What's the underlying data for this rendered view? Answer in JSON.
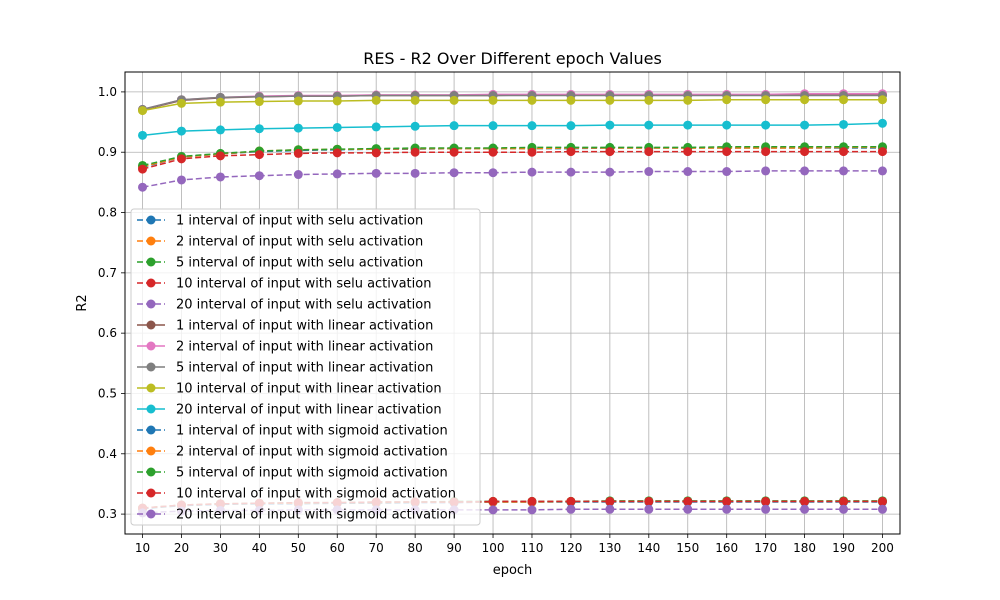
{
  "chart_data": {
    "type": "line",
    "title": "RES - R2 Over Different epoch Values",
    "xlabel": "epoch",
    "ylabel": "R2",
    "x": [
      10,
      20,
      30,
      40,
      50,
      60,
      70,
      80,
      90,
      100,
      110,
      120,
      130,
      140,
      150,
      160,
      170,
      180,
      190,
      200
    ],
    "x_ticks": [
      "10",
      "20",
      "30",
      "40",
      "50",
      "60",
      "70",
      "80",
      "90",
      "100",
      "110",
      "120",
      "130",
      "140",
      "150",
      "160",
      "170",
      "180",
      "190",
      "200"
    ],
    "y_ticks": [
      "0.3",
      "0.4",
      "0.5",
      "0.6",
      "0.7",
      "0.8",
      "0.9",
      "1.0"
    ],
    "ylim": [
      0.267,
      1.033
    ],
    "grid": true,
    "legend_position": "lower-left",
    "series": [
      {
        "name": "1 interval of input with selu activation",
        "color": "#1f77b4",
        "dash": true,
        "values": [
          0.875,
          0.892,
          0.897,
          0.901,
          0.903,
          0.904,
          0.905,
          0.905,
          0.906,
          0.906,
          0.906,
          0.906,
          0.907,
          0.907,
          0.907,
          0.907,
          0.907,
          0.907,
          0.907,
          0.907
        ]
      },
      {
        "name": "2 interval of input with selu activation",
        "color": "#ff7f0e",
        "dash": true,
        "values": [
          0.876,
          0.892,
          0.897,
          0.902,
          0.904,
          0.905,
          0.905,
          0.906,
          0.906,
          0.906,
          0.906,
          0.907,
          0.907,
          0.907,
          0.907,
          0.907,
          0.907,
          0.907,
          0.908,
          0.908
        ]
      },
      {
        "name": "5 interval of input with selu activation",
        "color": "#2ca02c",
        "dash": true,
        "values": [
          0.878,
          0.893,
          0.898,
          0.902,
          0.904,
          0.905,
          0.906,
          0.907,
          0.907,
          0.907,
          0.908,
          0.908,
          0.908,
          0.908,
          0.908,
          0.909,
          0.909,
          0.909,
          0.909,
          0.909
        ]
      },
      {
        "name": "10 interval of input with selu activation",
        "color": "#d62728",
        "dash": true,
        "values": [
          0.872,
          0.889,
          0.894,
          0.896,
          0.898,
          0.899,
          0.899,
          0.9,
          0.9,
          0.9,
          0.9,
          0.901,
          0.901,
          0.901,
          0.901,
          0.901,
          0.901,
          0.901,
          0.901,
          0.901
        ]
      },
      {
        "name": "20 interval of input with selu activation",
        "color": "#9467bd",
        "dash": true,
        "values": [
          0.842,
          0.854,
          0.859,
          0.861,
          0.863,
          0.864,
          0.865,
          0.865,
          0.866,
          0.866,
          0.867,
          0.867,
          0.867,
          0.868,
          0.868,
          0.868,
          0.869,
          0.869,
          0.869,
          0.869
        ]
      },
      {
        "name": "1 interval of input with linear activation",
        "color": "#8c564b",
        "dash": false,
        "values": [
          0.97,
          0.986,
          0.99,
          0.992,
          0.993,
          0.993,
          0.994,
          0.994,
          0.994,
          0.994,
          0.995,
          0.995,
          0.995,
          0.995,
          0.995,
          0.995,
          0.995,
          0.995,
          0.995,
          0.995
        ]
      },
      {
        "name": "2 interval of input with linear activation",
        "color": "#e377c2",
        "dash": false,
        "values": [
          0.971,
          0.987,
          0.991,
          0.993,
          0.994,
          0.994,
          0.995,
          0.995,
          0.995,
          0.996,
          0.996,
          0.996,
          0.996,
          0.996,
          0.996,
          0.996,
          0.996,
          0.997,
          0.997,
          0.997
        ]
      },
      {
        "name": "5 interval of input with linear activation",
        "color": "#7f7f7f",
        "dash": false,
        "values": [
          0.971,
          0.987,
          0.991,
          0.992,
          0.993,
          0.993,
          0.994,
          0.994,
          0.994,
          0.994,
          0.994,
          0.994,
          0.994,
          0.994,
          0.994,
          0.994,
          0.994,
          0.994,
          0.994,
          0.994
        ]
      },
      {
        "name": "10 interval of input with linear activation",
        "color": "#bcbd22",
        "dash": false,
        "values": [
          0.969,
          0.981,
          0.983,
          0.984,
          0.985,
          0.985,
          0.986,
          0.986,
          0.986,
          0.986,
          0.986,
          0.986,
          0.986,
          0.986,
          0.986,
          0.987,
          0.987,
          0.987,
          0.987,
          0.987
        ]
      },
      {
        "name": "20 interval of input with linear activation",
        "color": "#17becf",
        "dash": false,
        "values": [
          0.928,
          0.935,
          0.937,
          0.939,
          0.94,
          0.941,
          0.942,
          0.943,
          0.944,
          0.944,
          0.944,
          0.944,
          0.945,
          0.945,
          0.945,
          0.945,
          0.945,
          0.945,
          0.946,
          0.948
        ]
      },
      {
        "name": "1 interval of input with sigmoid activation",
        "color": "#1f77b4",
        "dash": true,
        "values": [
          0.309,
          0.314,
          0.316,
          0.317,
          0.317,
          0.318,
          0.318,
          0.319,
          0.319,
          0.32,
          0.32,
          0.32,
          0.32,
          0.32,
          0.32,
          0.32,
          0.32,
          0.32,
          0.32,
          0.32
        ]
      },
      {
        "name": "2 interval of input with sigmoid activation",
        "color": "#ff7f0e",
        "dash": true,
        "values": [
          0.31,
          0.315,
          0.317,
          0.318,
          0.318,
          0.319,
          0.319,
          0.32,
          0.32,
          0.32,
          0.32,
          0.321,
          0.321,
          0.321,
          0.321,
          0.321,
          0.321,
          0.321,
          0.321,
          0.321
        ]
      },
      {
        "name": "5 interval of input with sigmoid activation",
        "color": "#2ca02c",
        "dash": true,
        "values": [
          0.31,
          0.315,
          0.317,
          0.318,
          0.319,
          0.319,
          0.32,
          0.32,
          0.321,
          0.321,
          0.321,
          0.321,
          0.322,
          0.322,
          0.322,
          0.322,
          0.322,
          0.322,
          0.322,
          0.322
        ]
      },
      {
        "name": "10 interval of input with sigmoid activation",
        "color": "#d62728",
        "dash": true,
        "values": [
          0.31,
          0.315,
          0.317,
          0.318,
          0.319,
          0.319,
          0.32,
          0.32,
          0.32,
          0.321,
          0.321,
          0.321,
          0.321,
          0.321,
          0.321,
          0.321,
          0.321,
          0.321,
          0.321,
          0.321
        ]
      },
      {
        "name": "20 interval of input with sigmoid activation",
        "color": "#9467bd",
        "dash": true,
        "values": [
          0.302,
          0.305,
          0.306,
          0.306,
          0.307,
          0.307,
          0.307,
          0.307,
          0.307,
          0.307,
          0.307,
          0.308,
          0.308,
          0.308,
          0.308,
          0.308,
          0.308,
          0.308,
          0.308,
          0.308
        ]
      }
    ]
  }
}
